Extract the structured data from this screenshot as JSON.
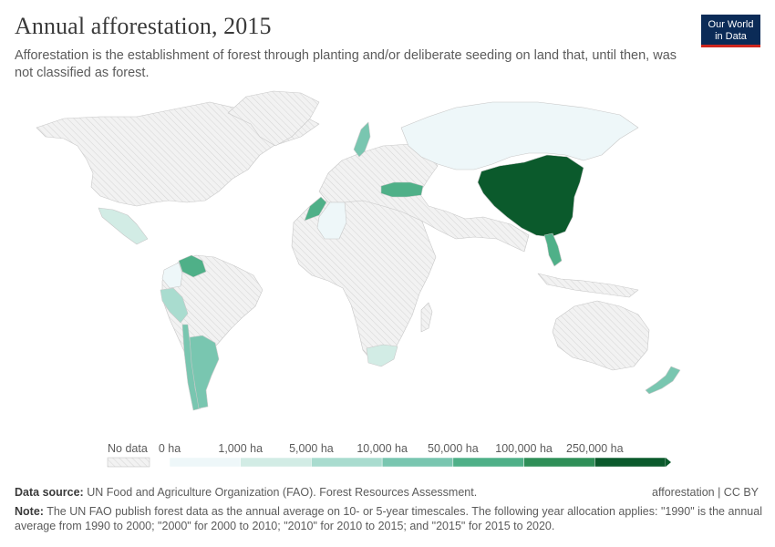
{
  "header": {
    "title": "Annual afforestation, 2015",
    "subtitle": "Afforestation is the establishment of forest through planting and/or deliberate seeding on land that, until then, was not classified as forest.",
    "logo_line1": "Our World",
    "logo_line2": "in Data"
  },
  "legend": {
    "no_data_label": "No data",
    "bins": [
      {
        "label": "0 ha",
        "color": "#eef7f9"
      },
      {
        "label": "1,000 ha",
        "color": "#d2ece5"
      },
      {
        "label": "5,000 ha",
        "color": "#a9dccf"
      },
      {
        "label": "10,000 ha",
        "color": "#79c6b0"
      },
      {
        "label": "50,000 ha",
        "color": "#4fb088"
      },
      {
        "label": "100,000 ha",
        "color": "#2f8f58"
      },
      {
        "label": "250,000 ha",
        "color": "#0b5a2c"
      }
    ]
  },
  "map": {
    "no_data_color": "#f2f2f2",
    "hatch_color": "#d7d7d7",
    "regions": [
      {
        "name": "China",
        "bin": 6
      },
      {
        "name": "Vietnam",
        "bin": 4
      },
      {
        "name": "Turkey",
        "bin": 4
      },
      {
        "name": "Venezuela",
        "bin": 4
      },
      {
        "name": "Morocco",
        "bin": 4
      },
      {
        "name": "Sweden",
        "bin": 3
      },
      {
        "name": "Argentina",
        "bin": 3
      },
      {
        "name": "New Zealand",
        "bin": 3
      },
      {
        "name": "Chile",
        "bin": 3
      },
      {
        "name": "Peru",
        "bin": 2
      },
      {
        "name": "Mexico",
        "bin": 1
      },
      {
        "name": "South Africa",
        "bin": 1
      },
      {
        "name": "Russia",
        "bin": 0
      },
      {
        "name": "Algeria",
        "bin": 0
      },
      {
        "name": "Colombia",
        "bin": 0
      }
    ]
  },
  "footer": {
    "source_label": "Data source:",
    "source_text": "UN Food and Agriculture Organization (FAO). Forest Resources Assessment.",
    "credit": "afforestation | CC BY",
    "note_label": "Note:",
    "note_text": "The UN FAO publish forest data as the annual average on 10- or 5-year timescales. The following year allocation applies: \"1990\" is the annual average from 1990 to 2000; \"2000\" for 2000 to 2010; \"2010\" for 2010 to 2015; and \"2015\" for 2015 to 2020."
  }
}
